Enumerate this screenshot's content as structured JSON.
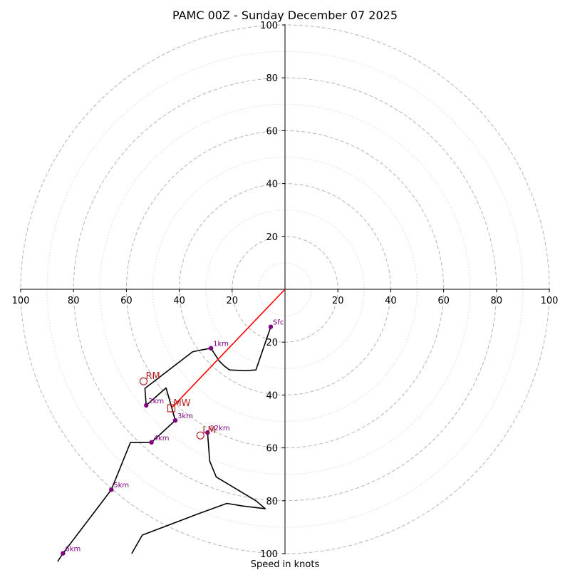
{
  "chart_data": {
    "type": "line",
    "title": "PAMC 00Z - Sunday December 07 2025",
    "xlabel": "Speed in knots",
    "ylabel": "",
    "xlim": [
      -100,
      100
    ],
    "ylim": [
      -100,
      100
    ],
    "rings_major": [
      20,
      40,
      60,
      80,
      100
    ],
    "rings_minor": [
      10,
      30,
      50,
      70,
      90
    ],
    "x_ticks": [
      {
        "value": -100,
        "label": "100"
      },
      {
        "value": -80,
        "label": "80"
      },
      {
        "value": -60,
        "label": "60"
      },
      {
        "value": -40,
        "label": "40"
      },
      {
        "value": -20,
        "label": "20"
      },
      {
        "value": 20,
        "label": "20"
      },
      {
        "value": 40,
        "label": "40"
      },
      {
        "value": 60,
        "label": "60"
      },
      {
        "value": 80,
        "label": "80"
      },
      {
        "value": 100,
        "label": "100"
      }
    ],
    "y_ticks": [
      {
        "value": 100,
        "label": "100"
      },
      {
        "value": 80,
        "label": "80"
      },
      {
        "value": 60,
        "label": "60"
      },
      {
        "value": 40,
        "label": "40"
      },
      {
        "value": 20,
        "label": "20"
      },
      {
        "value": -20,
        "label": "20"
      },
      {
        "value": -40,
        "label": "40"
      },
      {
        "value": -60,
        "label": "60"
      },
      {
        "value": -80,
        "label": "80"
      },
      {
        "value": -100,
        "label": "100"
      }
    ],
    "hodograph": {
      "name": "wind profile",
      "color": "#000000",
      "points": [
        [
          -5.4,
          -14.2
        ],
        [
          -28,
          -22.3
        ],
        [
          -33,
          -23.2
        ],
        [
          -34,
          -23.5
        ],
        [
          -25,
          -27
        ],
        [
          -23,
          -29
        ],
        [
          -21,
          -30
        ],
        [
          -15,
          -31
        ],
        [
          -11,
          -31
        ],
        [
          -34,
          -23.5
        ],
        [
          -53,
          -37
        ],
        [
          -52.5,
          -43.9
        ],
        [
          -45,
          -37.3
        ],
        [
          -42,
          -48.2
        ],
        [
          -41.5,
          -49.6
        ],
        [
          -50.5,
          -57.9
        ],
        [
          -58.5,
          -58
        ],
        [
          -65.7,
          -75.8
        ],
        [
          -70,
          -81.5
        ],
        [
          -84,
          -99.9
        ],
        [
          -92,
          -100.5
        ]
      ]
    },
    "hodograph_segments": [
      [
        [
          -5.4,
          -14.2
        ],
        [
          -11,
          -30.5
        ],
        [
          -15,
          -30.8
        ],
        [
          -21,
          -30.5
        ],
        [
          -23,
          -29
        ],
        [
          -25,
          -27
        ],
        [
          -28,
          -22.3
        ]
      ],
      [
        [
          -28,
          -22.3
        ],
        [
          -33,
          -23.2
        ],
        [
          -35,
          -23.7
        ],
        [
          -53,
          -37.5
        ],
        [
          -52.5,
          -43.9
        ],
        [
          -45,
          -37.3
        ],
        [
          -41.5,
          -49.6
        ],
        [
          -50.5,
          -57.9
        ],
        [
          -58.5,
          -58
        ],
        [
          -65.7,
          -75.8
        ],
        [
          -70,
          -81.5
        ],
        [
          -84,
          -99.9
        ],
        [
          -86,
          -103
        ]
      ],
      [
        [
          -29.3,
          -54.2
        ],
        [
          -28.5,
          -65
        ],
        [
          -26,
          -71
        ],
        [
          -11,
          -80
        ],
        [
          -7.5,
          -83
        ],
        [
          -16,
          -82
        ],
        [
          -22,
          -81
        ],
        [
          -33,
          -85
        ],
        [
          -54,
          -93
        ],
        [
          -58,
          -100
        ]
      ]
    ],
    "height_markers": [
      {
        "label": "Sfc",
        "x": -5.4,
        "y": -14.2
      },
      {
        "label": "1km",
        "x": -28,
        "y": -22.3
      },
      {
        "label": "2km",
        "x": -52.5,
        "y": -43.9
      },
      {
        "label": "3km",
        "x": -41.5,
        "y": -49.6
      },
      {
        "label": "4km",
        "x": -50.5,
        "y": -57.9
      },
      {
        "label": "5km",
        "x": -65.7,
        "y": -75.8
      },
      {
        "label": "6km",
        "x": -84,
        "y": -99.9
      },
      {
        "label": "12km",
        "x": -29.3,
        "y": -54.2
      }
    ],
    "marker_color": "#800080",
    "storm_motion": [
      {
        "label": "RM",
        "shape": "circle",
        "x": -53.5,
        "y": -34.8
      },
      {
        "label": "LM",
        "shape": "circle",
        "x": -32,
        "y": -55.3
      },
      {
        "label": "MW",
        "shape": "square",
        "x": -43,
        "y": -45
      }
    ],
    "storm_motion_color": "#b22222",
    "shear_vector": {
      "from": [
        0,
        0
      ],
      "to": [
        -43,
        -45
      ],
      "color": "#ff0000"
    }
  }
}
